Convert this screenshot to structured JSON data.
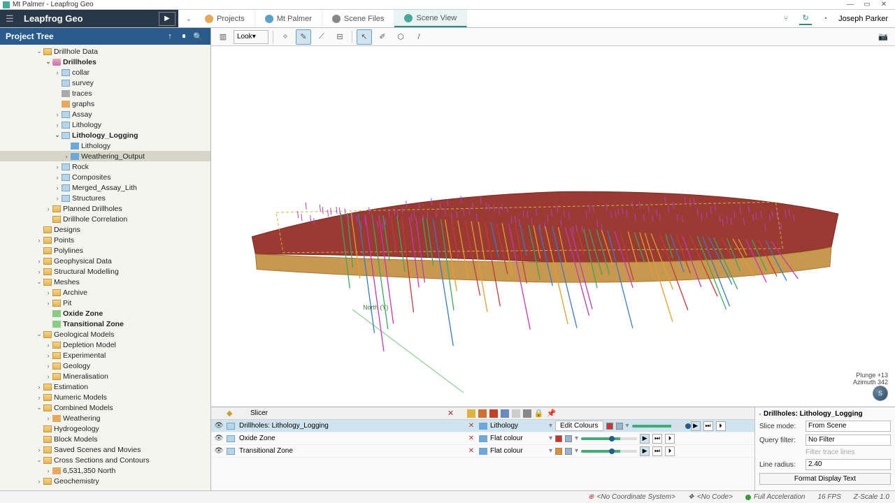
{
  "window": {
    "title": "Mt Palmer - Leapfrog Geo"
  },
  "brand": {
    "name": "Leapfrog Geo"
  },
  "tabs": [
    {
      "label": "Projects",
      "icon": "#e5a857"
    },
    {
      "label": "Mt Palmer",
      "icon": "#5aa0c8"
    },
    {
      "label": "Scene Files",
      "icon": "#888"
    },
    {
      "label": "Scene View",
      "icon": "#4aa89a",
      "active": true
    }
  ],
  "user": {
    "name": "Joseph Parker"
  },
  "sidebar": {
    "title": "Project Tree",
    "items": [
      {
        "d": 0,
        "a": "v",
        "i": "ti-folder",
        "t": "Drillhole Data"
      },
      {
        "d": 1,
        "a": "v",
        "i": "ti-db",
        "t": "Drillholes",
        "bold": true
      },
      {
        "d": 2,
        "a": ">",
        "i": "ti-data",
        "t": "collar"
      },
      {
        "d": 2,
        "a": "",
        "i": "ti-data",
        "t": "survey"
      },
      {
        "d": 2,
        "a": "",
        "i": "ti-gray",
        "t": "traces"
      },
      {
        "d": 2,
        "a": "",
        "i": "ti-orange",
        "t": "graphs"
      },
      {
        "d": 2,
        "a": ">",
        "i": "ti-data",
        "t": "Assay"
      },
      {
        "d": 2,
        "a": ">",
        "i": "ti-data",
        "t": "Lithology"
      },
      {
        "d": 2,
        "a": "v",
        "i": "ti-data",
        "t": "Lithology_Logging",
        "bold": true
      },
      {
        "d": 3,
        "a": "",
        "i": "ti-blue",
        "t": "Lithology"
      },
      {
        "d": 3,
        "a": ">",
        "i": "ti-blue",
        "t": "Weathering_Output",
        "sel": true
      },
      {
        "d": 2,
        "a": ">",
        "i": "ti-data",
        "t": "Rock"
      },
      {
        "d": 2,
        "a": ">",
        "i": "ti-data",
        "t": "Composites"
      },
      {
        "d": 2,
        "a": ">",
        "i": "ti-data",
        "t": "Merged_Assay_Lith"
      },
      {
        "d": 2,
        "a": ">",
        "i": "ti-data",
        "t": "Structures"
      },
      {
        "d": 1,
        "a": ">",
        "i": "ti-folder",
        "t": "Planned Drillholes"
      },
      {
        "d": 1,
        "a": "",
        "i": "ti-folder",
        "t": "Drillhole Correlation"
      },
      {
        "d": 0,
        "a": "",
        "i": "ti-folder",
        "t": "Designs"
      },
      {
        "d": 0,
        "a": ">",
        "i": "ti-folder",
        "t": "Points"
      },
      {
        "d": 0,
        "a": "",
        "i": "ti-folder",
        "t": "Polylines"
      },
      {
        "d": 0,
        "a": ">",
        "i": "ti-folder",
        "t": "Geophysical Data"
      },
      {
        "d": 0,
        "a": ">",
        "i": "ti-folder",
        "t": "Structural Modelling"
      },
      {
        "d": 0,
        "a": "v",
        "i": "ti-folder",
        "t": "Meshes"
      },
      {
        "d": 1,
        "a": ">",
        "i": "ti-folder",
        "t": "Archive"
      },
      {
        "d": 1,
        "a": ">",
        "i": "ti-folder",
        "t": "Pit"
      },
      {
        "d": 1,
        "a": "",
        "i": "ti-green",
        "t": "Oxide Zone",
        "bold": true
      },
      {
        "d": 1,
        "a": "",
        "i": "ti-green",
        "t": "Transitional Zone",
        "bold": true
      },
      {
        "d": 0,
        "a": "v",
        "i": "ti-folder",
        "t": "Geological Models"
      },
      {
        "d": 1,
        "a": ">",
        "i": "ti-folder",
        "t": "Depletion Model"
      },
      {
        "d": 1,
        "a": ">",
        "i": "ti-folder",
        "t": "Experimental"
      },
      {
        "d": 1,
        "a": ">",
        "i": "ti-folder",
        "t": "Geology"
      },
      {
        "d": 1,
        "a": ">",
        "i": "ti-folder",
        "t": "Mineralisation"
      },
      {
        "d": 0,
        "a": ">",
        "i": "ti-folder",
        "t": "Estimation"
      },
      {
        "d": 0,
        "a": ">",
        "i": "ti-folder",
        "t": "Numeric Models"
      },
      {
        "d": 0,
        "a": "v",
        "i": "ti-folder",
        "t": "Combined Models"
      },
      {
        "d": 1,
        "a": ">",
        "i": "ti-orange",
        "t": "Weathering"
      },
      {
        "d": 0,
        "a": "",
        "i": "ti-folder",
        "t": "Hydrogeology"
      },
      {
        "d": 0,
        "a": "",
        "i": "ti-folder",
        "t": "Block Models"
      },
      {
        "d": 0,
        "a": ">",
        "i": "ti-folder",
        "t": "Saved Scenes and Movies"
      },
      {
        "d": 0,
        "a": "v",
        "i": "ti-folder",
        "t": "Cross Sections and Contours"
      },
      {
        "d": 1,
        "a": ">",
        "i": "ti-orange",
        "t": "6,531,350 North"
      },
      {
        "d": 0,
        "a": ">",
        "i": "ti-folder",
        "t": "Geochemistry"
      }
    ]
  },
  "toolbar": {
    "look": "Look"
  },
  "scene": {
    "north_label": "North (Y)",
    "compass": {
      "plunge": "Plunge +13",
      "azimuth": "Azimuth 342",
      "s": "S"
    },
    "surface_top_color": "#9a3a32",
    "surface_side_color": "#c89850",
    "drillhole_colors": [
      "#3a78c2",
      "#3aa858",
      "#c23a3a",
      "#c238b0",
      "#e0a030"
    ]
  },
  "shapelist": {
    "header": "Slicer",
    "rows": [
      {
        "label": "Drillholes: Lithology_Logging",
        "mode": "Lithology",
        "editcol": "Edit Colours",
        "sel": true,
        "c1": "#c23a3a",
        "c2": "#9ab4d0",
        "s": 95
      },
      {
        "label": "Oxide Zone",
        "mode": "Flat colour",
        "c1": "#d03028",
        "c2": "#9ab4d0",
        "s": 50
      },
      {
        "label": "Transitional Zone",
        "mode": "Flat colour",
        "c1": "#e09028",
        "c2": "#9ab4d0",
        "s": 50
      }
    ]
  },
  "props": {
    "title": "Drillholes: Lithology_Logging",
    "slice_label": "Slice mode:",
    "slice_val": "From Scene",
    "query_label": "Query filter:",
    "query_val": "No Filter",
    "filter_hint": "Filter trace lines",
    "radius_label": "Line radius:",
    "radius_val": "2.40",
    "format_btn": "Format Display Text"
  },
  "status": {
    "coord": "<No Coordinate System>",
    "code": "<No Code>",
    "accel": "Full Acceleration",
    "fps": "16 FPS",
    "zscale": "Z-Scale 1.0"
  }
}
